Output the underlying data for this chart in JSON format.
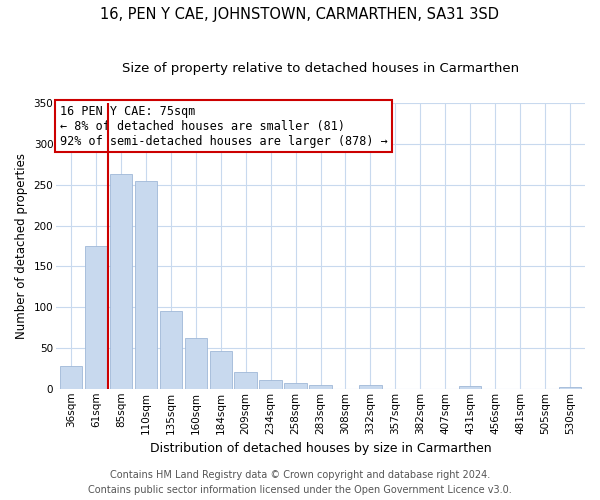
{
  "title": "16, PEN Y CAE, JOHNSTOWN, CARMARTHEN, SA31 3SD",
  "subtitle": "Size of property relative to detached houses in Carmarthen",
  "xlabel": "Distribution of detached houses by size in Carmarthen",
  "ylabel": "Number of detached properties",
  "bar_labels": [
    "36sqm",
    "61sqm",
    "85sqm",
    "110sqm",
    "135sqm",
    "160sqm",
    "184sqm",
    "209sqm",
    "234sqm",
    "258sqm",
    "283sqm",
    "308sqm",
    "332sqm",
    "357sqm",
    "382sqm",
    "407sqm",
    "431sqm",
    "456sqm",
    "481sqm",
    "505sqm",
    "530sqm"
  ],
  "bar_values": [
    28,
    175,
    263,
    255,
    95,
    62,
    46,
    20,
    11,
    7,
    5,
    0,
    4,
    0,
    0,
    0,
    3,
    0,
    0,
    0,
    2
  ],
  "bar_color": "#c8d9ee",
  "bar_edge_color": "#a0b8d8",
  "grid_color": "#c8d9ee",
  "marker_line_color": "#cc0000",
  "annotation_text": "16 PEN Y CAE: 75sqm\n← 8% of detached houses are smaller (81)\n92% of semi-detached houses are larger (878) →",
  "annotation_box_color": "#ffffff",
  "annotation_box_edge": "#cc0000",
  "ylim": [
    0,
    350
  ],
  "yticks": [
    0,
    50,
    100,
    150,
    200,
    250,
    300,
    350
  ],
  "footer_line1": "Contains HM Land Registry data © Crown copyright and database right 2024.",
  "footer_line2": "Contains public sector information licensed under the Open Government Licence v3.0.",
  "title_fontsize": 10.5,
  "subtitle_fontsize": 9.5,
  "xlabel_fontsize": 9,
  "ylabel_fontsize": 8.5,
  "tick_fontsize": 7.5,
  "annotation_fontsize": 8.5,
  "footer_fontsize": 7
}
